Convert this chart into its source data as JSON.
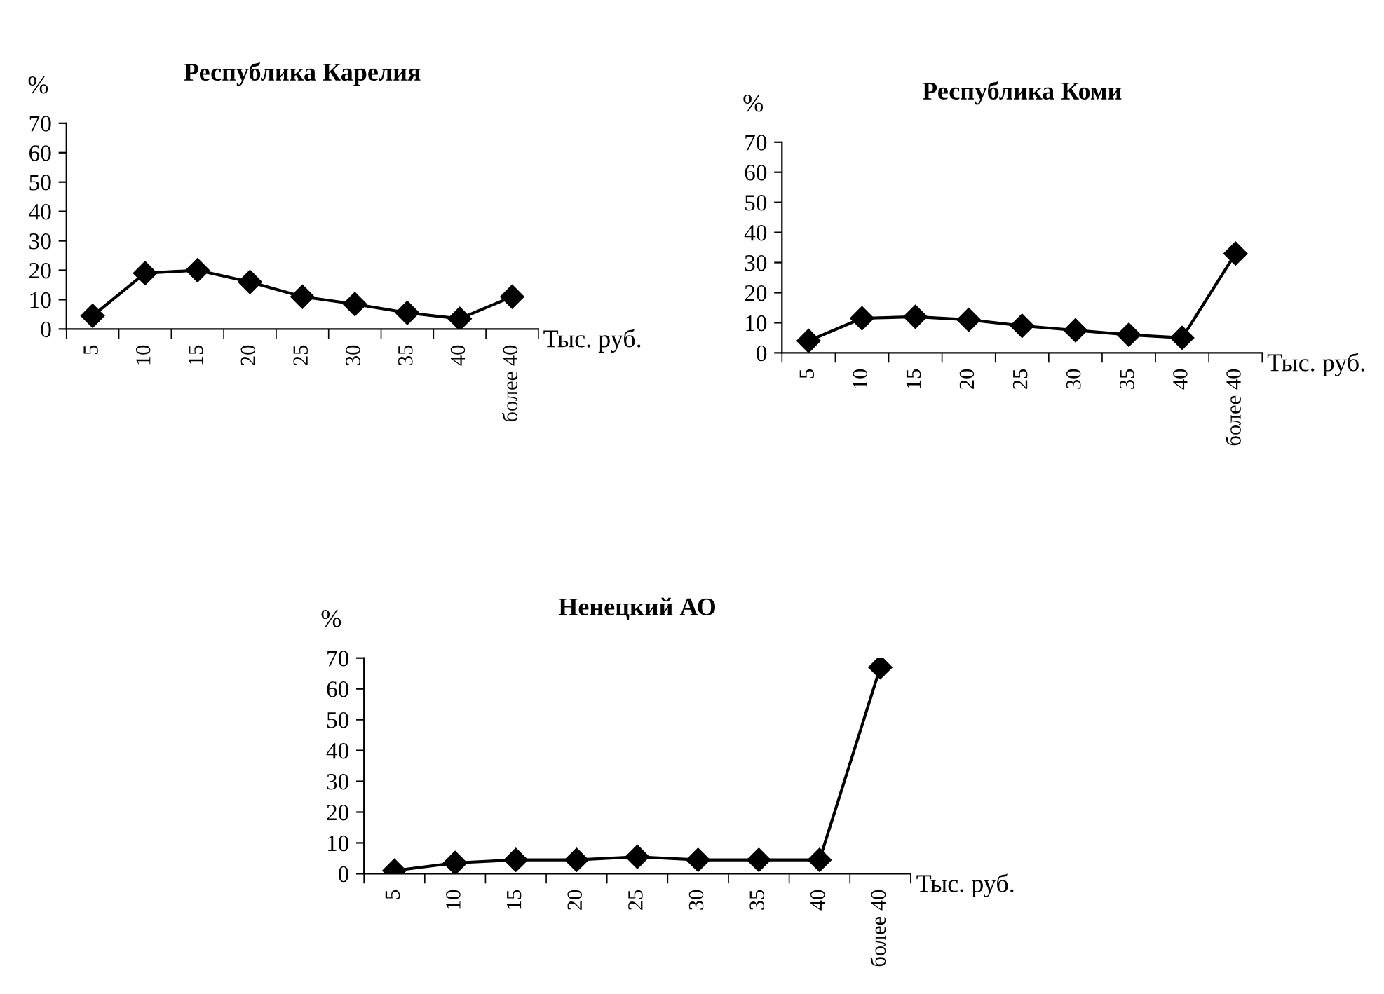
{
  "chart_data": [
    {
      "type": "line",
      "title": "Республика Карелия",
      "ylabel": "%",
      "xlabel": "Тыс. руб.",
      "categories": [
        "5",
        "10",
        "15",
        "20",
        "25",
        "30",
        "35",
        "40",
        "более 40"
      ],
      "ylim": [
        0,
        70
      ],
      "yticks": [
        0,
        10,
        20,
        30,
        40,
        50,
        60,
        70
      ],
      "marker": "diamond",
      "line_style": "solid",
      "series": [
        {
          "color": "#000000",
          "values": [
            4.5,
            19,
            20,
            16,
            11,
            8.5,
            5.5,
            3.5,
            11
          ]
        }
      ]
    },
    {
      "type": "line",
      "title": "Республика Коми",
      "ylabel": "%",
      "xlabel": "Тыс. руб.",
      "categories": [
        "5",
        "10",
        "15",
        "20",
        "25",
        "30",
        "35",
        "40",
        "более 40"
      ],
      "ylim": [
        0,
        70
      ],
      "yticks": [
        0,
        10,
        20,
        30,
        40,
        50,
        60,
        70
      ],
      "marker": "diamond",
      "line_style": "solid",
      "series": [
        {
          "color": "#000000",
          "values": [
            4,
            11.5,
            12,
            11,
            9,
            7.5,
            6,
            5,
            33
          ]
        }
      ]
    },
    {
      "type": "line",
      "title": "Ненецкий АО",
      "ylabel": "%",
      "xlabel": "Тыс. руб.",
      "categories": [
        "5",
        "10",
        "15",
        "20",
        "25",
        "30",
        "35",
        "40",
        "более 40"
      ],
      "ylim": [
        0,
        70
      ],
      "yticks": [
        0,
        10,
        20,
        30,
        40,
        50,
        60,
        70
      ],
      "marker": "diamond",
      "line_style": "solid",
      "series": [
        {
          "color": "#000000",
          "values": [
            1,
            3.5,
            4.5,
            4.5,
            5.5,
            4.5,
            4.5,
            4.5,
            67
          ]
        }
      ]
    }
  ]
}
